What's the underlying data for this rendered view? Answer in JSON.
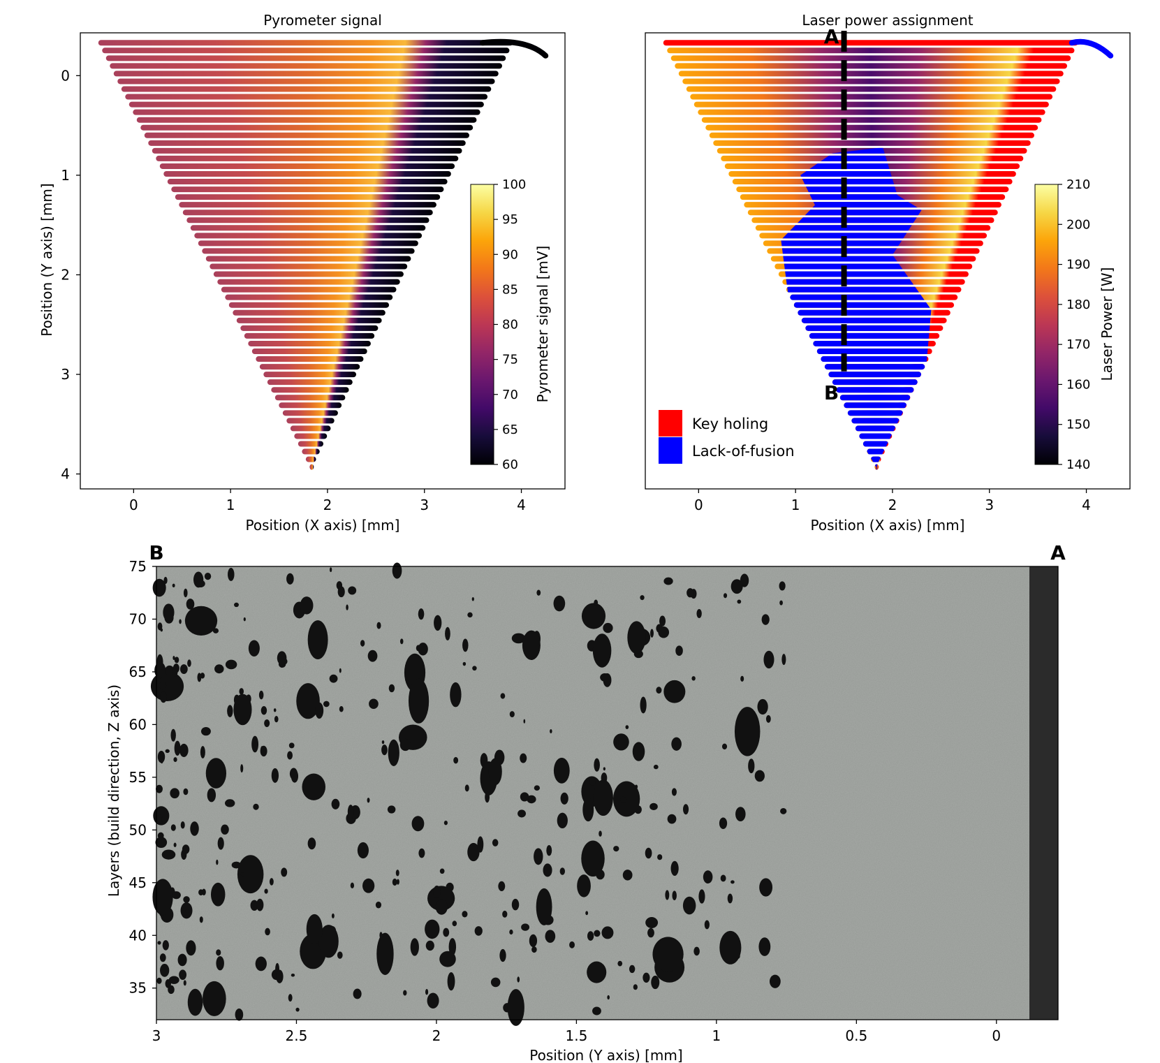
{
  "chart_data": [
    {
      "id": "pyrometer",
      "type": "scatter",
      "title": "Pyrometer signal",
      "xlabel": "Position (X axis) [mm]",
      "ylabel": "Position (Y axis) [mm]",
      "xlim": [
        -0.55,
        4.45
      ],
      "ylim": [
        4.15,
        -0.43
      ],
      "xticks": [
        0,
        1,
        2,
        3,
        4
      ],
      "yticks": [
        0,
        1,
        2,
        3,
        4
      ],
      "shape": {
        "top_y": -0.33,
        "top_left_x": -0.35,
        "top_right_x": 3.9,
        "tip_x": 1.83,
        "tip_y": 3.93,
        "tail_end": [
          4.25,
          -0.2
        ]
      },
      "colorbar": {
        "label": "Pyrometer signal [mV]",
        "min": 60,
        "max": 100,
        "ticks": [
          60,
          65,
          70,
          75,
          80,
          85,
          90,
          95,
          100
        ],
        "colormap": "inferno"
      }
    },
    {
      "id": "laser",
      "type": "scatter",
      "title": "Laser power assignment",
      "xlabel": "Position (X axis) [mm]",
      "ylabel": "",
      "xlim": [
        -0.55,
        4.45
      ],
      "ylim": [
        4.15,
        -0.43
      ],
      "xticks": [
        0,
        1,
        2,
        3,
        4
      ],
      "yticks": [],
      "section_line": {
        "x": 1.5,
        "y_start": -0.45,
        "y_end": 2.97,
        "start_label": "A",
        "end_label": "B"
      },
      "colorbar": {
        "label": "Laser Power [W]",
        "min": 140,
        "max": 210,
        "ticks": [
          140,
          150,
          160,
          170,
          180,
          190,
          200,
          210
        ],
        "colormap": "inferno"
      },
      "legend": [
        {
          "label": "Key holing",
          "color": "#ff0000"
        },
        {
          "label": "Lack-of-fusion",
          "color": "#0000ff"
        }
      ],
      "legend_position": "lower-left"
    },
    {
      "id": "micrograph",
      "type": "image",
      "xlabel": "Position (Y axis) [mm]",
      "ylabel": "Layers (build direction, Z axis)",
      "xlim": [
        3,
        -0.22
      ],
      "ylim": [
        32,
        75
      ],
      "xticks": [
        3,
        2.5,
        2,
        1.5,
        1,
        0.5,
        0
      ],
      "xtick_labels": [
        "3",
        "2.5",
        "2",
        "1.5",
        "1",
        "0.5",
        "0"
      ],
      "yticks": [
        35,
        40,
        45,
        50,
        55,
        60,
        65,
        70,
        75
      ],
      "left_label": "B",
      "right_label": "A"
    }
  ],
  "colors": {
    "keyhole": "#ff0000",
    "lof": "#0000ff",
    "matrix": "#a6aaa6",
    "pore": "#111111"
  }
}
